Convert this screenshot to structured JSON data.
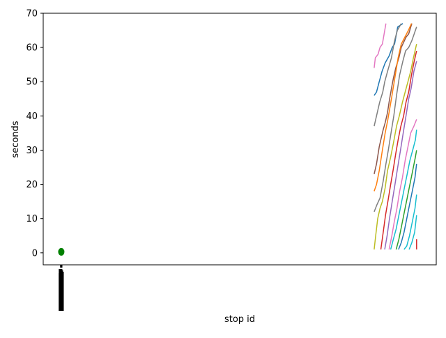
{
  "chart_data": {
    "type": "line",
    "title": "",
    "xlabel": "stop id",
    "ylabel": "seconds",
    "ylim": [
      -3.5,
      70
    ],
    "yticks": [
      0,
      10,
      20,
      30,
      40,
      50,
      60,
      70
    ],
    "ytick_labels": [
      "0",
      "10",
      "20",
      "30",
      "40",
      "50",
      "60",
      "70"
    ],
    "xlim": [
      0,
      100
    ],
    "x_note": "stop id is a categorical axis; its many tick labels are rotated and overlap into an unreadable stack near the left edge",
    "x_tick_count": 18,
    "legend": "none",
    "grid": false,
    "marker": {
      "x": 4.6,
      "y": 0.3,
      "color": "#008000"
    },
    "series": [
      {
        "color": "#e377c2",
        "points": [
          [
            84.2,
            54
          ],
          [
            84.5,
            57
          ],
          [
            85.2,
            58
          ],
          [
            85.7,
            60
          ],
          [
            86.3,
            61
          ],
          [
            87.2,
            67
          ]
        ]
      },
      {
        "color": "#1f77b4",
        "points": [
          [
            84.2,
            46
          ],
          [
            84.8,
            47
          ],
          [
            85.5,
            50
          ],
          [
            86.2,
            53
          ],
          [
            87.0,
            55.5
          ],
          [
            88.0,
            57.5
          ],
          [
            88.8,
            60
          ],
          [
            89.4,
            61
          ],
          [
            90.2,
            66
          ],
          [
            91.5,
            67
          ]
        ]
      },
      {
        "color": "#7f7f7f",
        "points": [
          [
            84.2,
            37
          ],
          [
            84.8,
            40
          ],
          [
            85.6,
            44
          ],
          [
            86.4,
            47
          ],
          [
            86.9,
            50
          ],
          [
            87.6,
            53
          ],
          [
            88.6,
            57
          ],
          [
            89.4,
            62
          ],
          [
            90.1,
            65
          ],
          [
            91.1,
            67
          ]
        ]
      },
      {
        "color": "#8c564b",
        "points": [
          [
            84.2,
            23
          ],
          [
            84.8,
            26
          ],
          [
            85.5,
            31
          ],
          [
            86.1,
            34
          ],
          [
            86.5,
            36
          ],
          [
            87.0,
            38
          ],
          [
            87.6,
            41
          ],
          [
            88.0,
            44
          ],
          [
            88.6,
            48
          ],
          [
            89.1,
            51
          ],
          [
            89.7,
            54
          ],
          [
            90.5,
            57
          ],
          [
            91.1,
            60
          ],
          [
            92.3,
            63
          ],
          [
            93.0,
            64
          ],
          [
            93.8,
            67
          ]
        ]
      },
      {
        "color": "#ff7f0e",
        "points": [
          [
            84.2,
            18
          ],
          [
            84.8,
            20
          ],
          [
            85.5,
            24
          ],
          [
            86.3,
            30
          ],
          [
            87.0,
            35
          ],
          [
            87.7,
            39
          ],
          [
            88.6,
            45
          ],
          [
            89.3,
            50
          ],
          [
            90.3,
            57
          ],
          [
            91.1,
            61
          ],
          [
            92.0,
            63
          ],
          [
            92.9,
            65
          ],
          [
            93.7,
            67
          ]
        ]
      },
      {
        "color": "#7f7f7f",
        "points": [
          [
            84.2,
            12
          ],
          [
            84.9,
            14
          ],
          [
            85.7,
            16
          ],
          [
            86.5,
            21
          ],
          [
            87.2,
            26
          ],
          [
            87.8,
            30
          ],
          [
            88.5,
            35
          ],
          [
            89.2,
            40
          ],
          [
            89.9,
            46
          ],
          [
            90.7,
            52
          ],
          [
            91.5,
            56
          ],
          [
            92.2,
            59
          ],
          [
            93.0,
            60
          ],
          [
            93.8,
            62
          ],
          [
            94.4,
            64
          ],
          [
            95.0,
            66
          ]
        ]
      },
      {
        "color": "#bcbd22",
        "points": [
          [
            84.2,
            1
          ],
          [
            84.6,
            5
          ],
          [
            85.1,
            10
          ],
          [
            85.7,
            13
          ],
          [
            86.3,
            15
          ],
          [
            87.0,
            19
          ],
          [
            87.6,
            24
          ],
          [
            88.4,
            28
          ],
          [
            89.1,
            32
          ],
          [
            89.9,
            37
          ],
          [
            90.6,
            40
          ],
          [
            91.4,
            44
          ],
          [
            92.1,
            47
          ],
          [
            92.8,
            50
          ],
          [
            93.5,
            53
          ],
          [
            94.2,
            57
          ],
          [
            95.0,
            61
          ]
        ]
      },
      {
        "color": "#d62728",
        "points": [
          [
            85.9,
            1
          ],
          [
            86.5,
            6
          ],
          [
            87.1,
            11
          ],
          [
            87.7,
            15
          ],
          [
            88.4,
            20
          ],
          [
            89.0,
            24
          ],
          [
            89.7,
            29
          ],
          [
            90.3,
            33
          ],
          [
            91.0,
            37
          ],
          [
            91.7,
            40
          ],
          [
            92.3,
            44
          ],
          [
            93.0,
            47
          ],
          [
            93.7,
            52
          ],
          [
            94.4,
            56
          ],
          [
            95.0,
            59
          ]
        ]
      },
      {
        "color": "#9467bd",
        "points": [
          [
            86.9,
            1
          ],
          [
            87.5,
            5
          ],
          [
            88.1,
            10
          ],
          [
            88.8,
            15
          ],
          [
            89.5,
            20
          ],
          [
            90.2,
            25
          ],
          [
            90.9,
            30
          ],
          [
            91.6,
            35
          ],
          [
            92.3,
            40
          ],
          [
            93.0,
            45
          ],
          [
            93.6,
            48
          ],
          [
            94.3,
            53
          ],
          [
            95.0,
            56
          ]
        ]
      },
      {
        "color": "#e377c2",
        "points": [
          [
            88.0,
            1
          ],
          [
            88.7,
            5
          ],
          [
            89.3,
            9
          ],
          [
            90.0,
            13
          ],
          [
            90.7,
            18
          ],
          [
            91.4,
            22
          ],
          [
            92.1,
            27
          ],
          [
            92.8,
            31
          ],
          [
            93.5,
            35
          ],
          [
            94.3,
            37
          ],
          [
            95.0,
            39
          ]
        ]
      },
      {
        "color": "#17becf",
        "points": [
          [
            88.4,
            1
          ],
          [
            89.1,
            4
          ],
          [
            89.8,
            7
          ],
          [
            90.5,
            11
          ],
          [
            91.2,
            15
          ],
          [
            91.9,
            19
          ],
          [
            92.6,
            23
          ],
          [
            93.3,
            27
          ],
          [
            94.0,
            30
          ],
          [
            94.7,
            33
          ],
          [
            95.0,
            36
          ]
        ]
      },
      {
        "color": "#2ca02c",
        "points": [
          [
            89.8,
            1
          ],
          [
            90.5,
            4
          ],
          [
            91.2,
            8
          ],
          [
            91.9,
            12
          ],
          [
            92.6,
            16
          ],
          [
            93.3,
            20
          ],
          [
            94.0,
            24
          ],
          [
            94.7,
            28
          ],
          [
            95.0,
            30
          ]
        ]
      },
      {
        "color": "#1f77b4",
        "points": [
          [
            90.4,
            1
          ],
          [
            91.1,
            3
          ],
          [
            91.8,
            6
          ],
          [
            92.5,
            10
          ],
          [
            93.2,
            14
          ],
          [
            93.9,
            18
          ],
          [
            94.6,
            22
          ],
          [
            95.0,
            26
          ]
        ]
      },
      {
        "color": "#17becf",
        "points": [
          [
            91.8,
            1
          ],
          [
            92.5,
            2
          ],
          [
            93.2,
            5
          ],
          [
            93.9,
            9
          ],
          [
            94.6,
            13
          ],
          [
            95.0,
            17
          ]
        ]
      },
      {
        "color": "#17becf",
        "points": [
          [
            93.1,
            1
          ],
          [
            93.8,
            3
          ],
          [
            94.5,
            6
          ],
          [
            95.0,
            11
          ]
        ]
      },
      {
        "color": "#d62728",
        "points": [
          [
            95.0,
            1
          ],
          [
            95.0,
            4
          ]
        ]
      }
    ]
  }
}
